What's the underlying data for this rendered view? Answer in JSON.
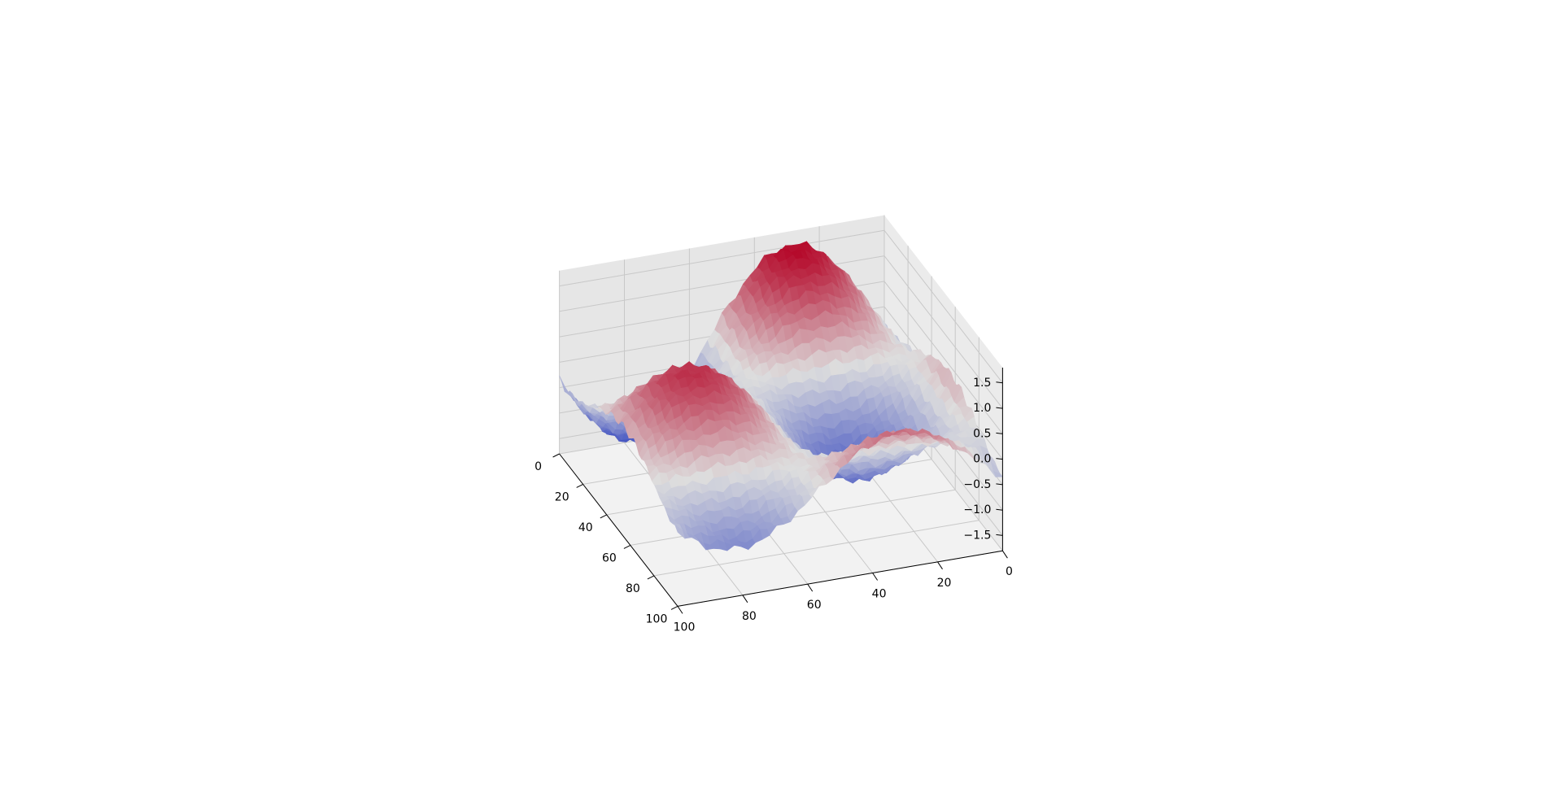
{
  "chart_data": {
    "type": "surface",
    "title": "",
    "xlabel": "",
    "ylabel": "",
    "zlabel": "",
    "colormap": "coolwarm",
    "colors": {
      "low": "#3b4cc0",
      "mid": "#dddddd",
      "high": "#b40426"
    },
    "grid": true,
    "pane_color": "#f2f2f2",
    "grid_color": "#c8c8c8",
    "x_ticks": [
      "0",
      "20",
      "40",
      "60",
      "80",
      "100"
    ],
    "y_ticks": [
      "0",
      "20",
      "40",
      "60",
      "80",
      "100"
    ],
    "z_ticks": [
      "−1.5",
      "−1.0",
      "−0.5",
      "0.0",
      "0.5",
      "1.0",
      "1.5"
    ],
    "xlim": [
      0,
      100
    ],
    "ylim": [
      0,
      100
    ],
    "zlim": [
      -1.8,
      1.8
    ],
    "grid_size": [
      100,
      100
    ],
    "z_range": [
      -1.55,
      1.6
    ],
    "surface_profile": [
      {
        "x": 0,
        "y": 0,
        "z": -0.1
      },
      {
        "x": 0,
        "y": 50,
        "z": -0.35
      },
      {
        "x": 0,
        "y": 100,
        "z": 0.3
      },
      {
        "x": 25,
        "y": 20,
        "z": 1.58
      },
      {
        "x": 50,
        "y": 0,
        "z": 0.4
      },
      {
        "x": 50,
        "y": 50,
        "z": 0.0
      },
      {
        "x": 50,
        "y": 100,
        "z": -0.4
      },
      {
        "x": 75,
        "y": 80,
        "z": -1.55
      },
      {
        "x": 100,
        "y": 0,
        "z": -0.3
      },
      {
        "x": 100,
        "y": 50,
        "z": 0.35
      },
      {
        "x": 100,
        "y": 100,
        "z": 0.1
      }
    ]
  }
}
